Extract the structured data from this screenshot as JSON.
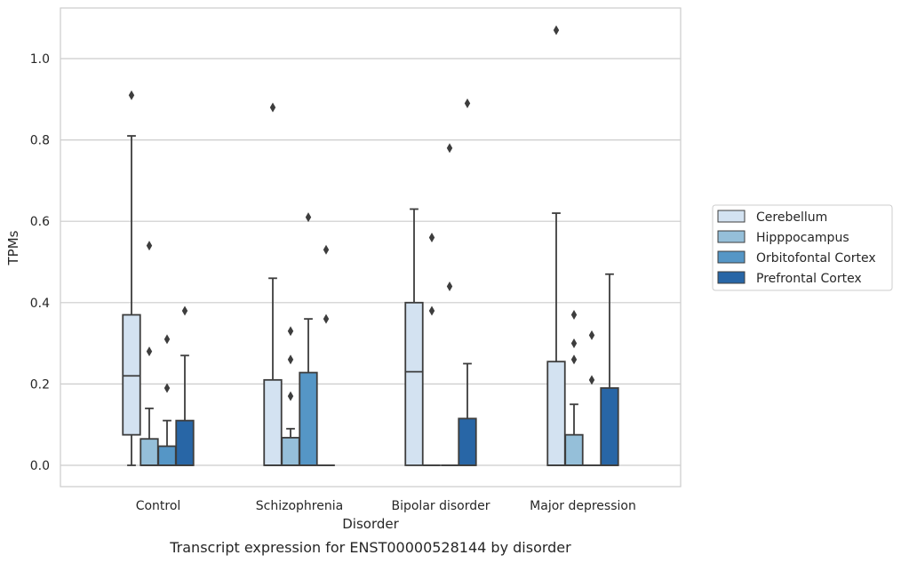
{
  "chart_data": {
    "type": "box",
    "title": "",
    "caption": "Transcript expression for ENST00000528144 by disorder",
    "xlabel": "Disorder",
    "ylabel": "TPMs",
    "ylim": [
      -0.05,
      1.13
    ],
    "yticks": [
      "0.0",
      "0.2",
      "0.4",
      "0.6",
      "0.8",
      "1.0"
    ],
    "grid": "horizontal",
    "legend_position": "right",
    "categories": [
      "Control",
      "Schizophrenia",
      "Bipolar disorder",
      "Major depression"
    ],
    "series": [
      {
        "name": "Cerebellum",
        "color": "#d3e2f1",
        "boxes": [
          {
            "whislo": 0.0,
            "q1": 0.075,
            "med": 0.22,
            "q3": 0.37,
            "whishi": 0.81,
            "fliers": [
              0.91
            ]
          },
          {
            "whislo": 0.0,
            "q1": 0.0,
            "med": 0.0,
            "q3": 0.21,
            "whishi": 0.46,
            "fliers": [
              0.88
            ]
          },
          {
            "whislo": 0.0,
            "q1": 0.0,
            "med": 0.23,
            "q3": 0.4,
            "whishi": 0.63,
            "fliers": []
          },
          {
            "whislo": 0.0,
            "q1": 0.0,
            "med": 0.0,
            "q3": 0.255,
            "whishi": 0.62,
            "fliers": [
              1.07
            ]
          }
        ]
      },
      {
        "name": "Hipppocampus",
        "color": "#95bfd9",
        "boxes": [
          {
            "whislo": 0.0,
            "q1": 0.0,
            "med": 0.0,
            "q3": 0.065,
            "whishi": 0.14,
            "fliers": [
              0.28,
              0.54
            ]
          },
          {
            "whislo": 0.0,
            "q1": 0.0,
            "med": 0.0,
            "q3": 0.068,
            "whishi": 0.09,
            "fliers": [
              0.17,
              0.26,
              0.33
            ]
          },
          {
            "whislo": 0.0,
            "q1": 0.0,
            "med": 0.0,
            "q3": 0.0,
            "whishi": 0.0,
            "fliers": [
              0.38,
              0.56
            ]
          },
          {
            "whislo": 0.0,
            "q1": 0.0,
            "med": 0.0,
            "q3": 0.075,
            "whishi": 0.15,
            "fliers": [
              0.26,
              0.3,
              0.37
            ]
          }
        ]
      },
      {
        "name": "Orbitofontal Cortex",
        "color": "#5596c6",
        "boxes": [
          {
            "whislo": 0.0,
            "q1": 0.0,
            "med": 0.0,
            "q3": 0.047,
            "whishi": 0.11,
            "fliers": [
              0.19,
              0.31
            ]
          },
          {
            "whislo": 0.0,
            "q1": 0.0,
            "med": 0.0,
            "q3": 0.228,
            "whishi": 0.36,
            "fliers": [
              0.61
            ]
          },
          {
            "whislo": 0.0,
            "q1": 0.0,
            "med": 0.0,
            "q3": 0.0,
            "whishi": 0.0,
            "fliers": [
              0.44,
              0.78
            ]
          },
          {
            "whislo": 0.0,
            "q1": 0.0,
            "med": 0.0,
            "q3": 0.0,
            "whishi": 0.0,
            "fliers": [
              0.21,
              0.32
            ]
          }
        ]
      },
      {
        "name": "Prefrontal Cortex",
        "color": "#2866a6",
        "boxes": [
          {
            "whislo": 0.0,
            "q1": 0.0,
            "med": 0.0,
            "q3": 0.11,
            "whishi": 0.27,
            "fliers": [
              0.38
            ]
          },
          {
            "whislo": 0.0,
            "q1": 0.0,
            "med": 0.0,
            "q3": 0.0,
            "whishi": 0.0,
            "fliers": [
              0.36,
              0.53
            ]
          },
          {
            "whislo": 0.0,
            "q1": 0.0,
            "med": 0.0,
            "q3": 0.115,
            "whishi": 0.25,
            "fliers": [
              0.89
            ]
          },
          {
            "whislo": 0.0,
            "q1": 0.0,
            "med": 0.0,
            "q3": 0.19,
            "whishi": 0.47,
            "fliers": []
          }
        ]
      }
    ]
  }
}
